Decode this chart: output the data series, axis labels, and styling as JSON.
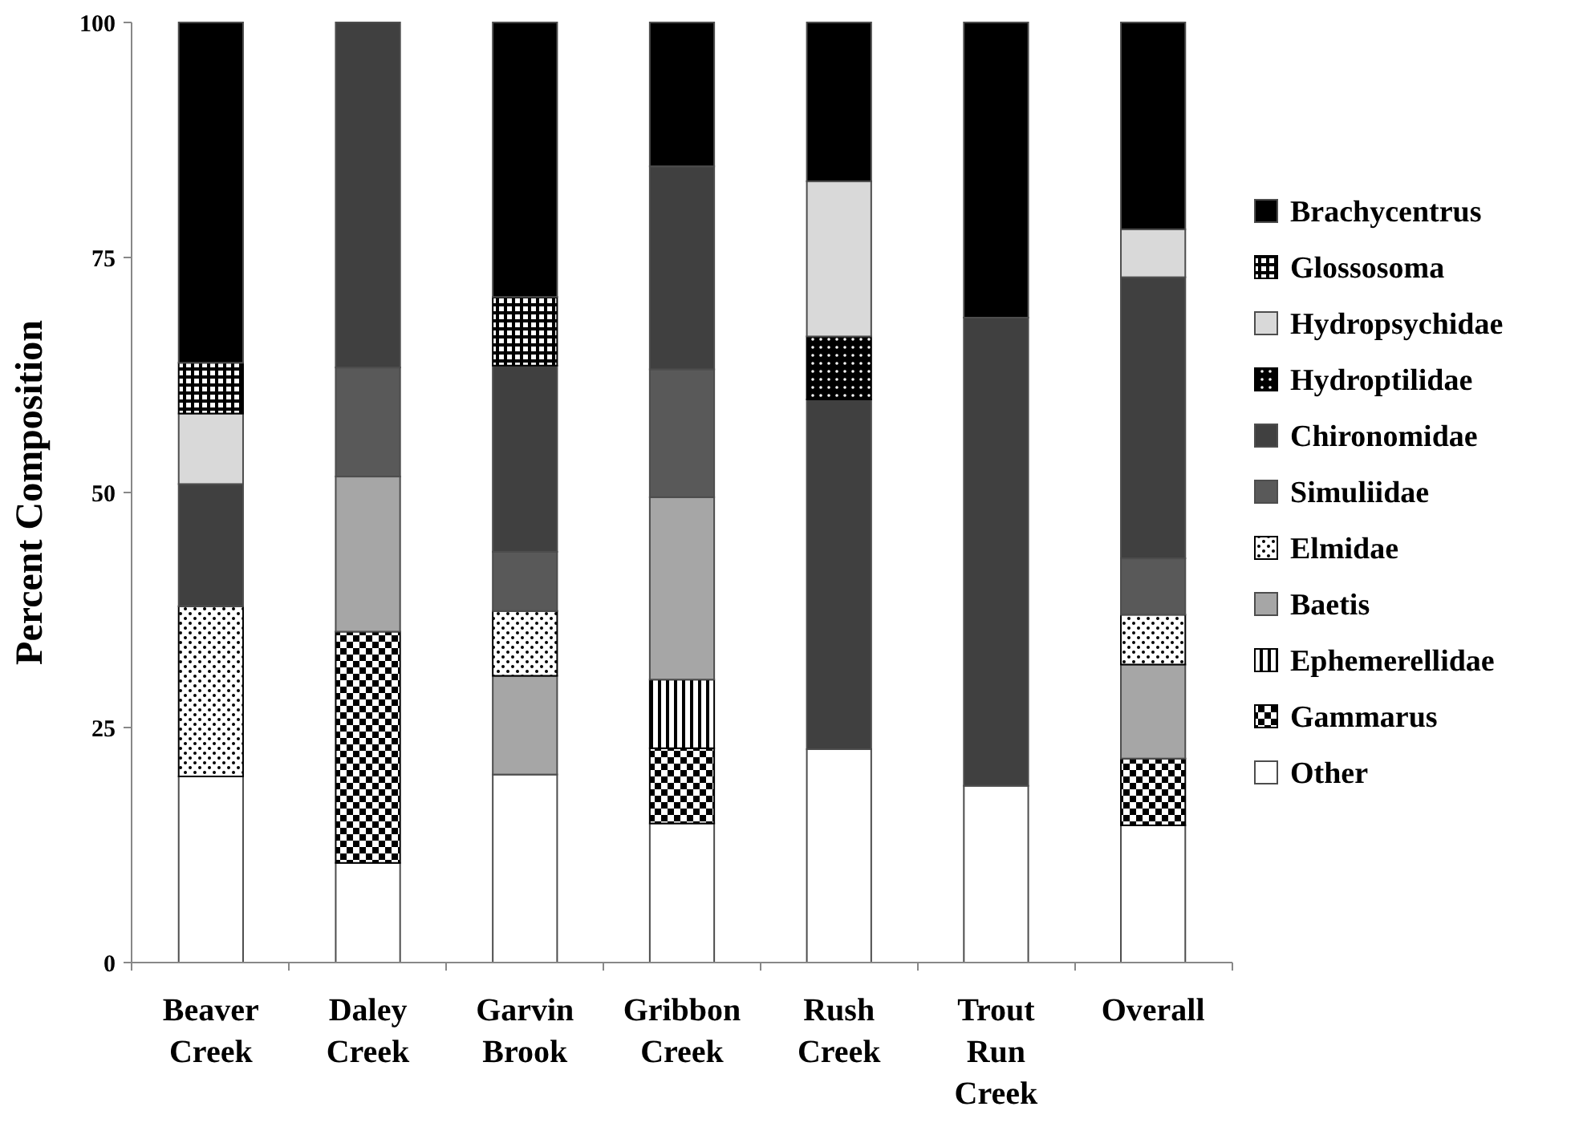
{
  "chart_data": {
    "type": "bar",
    "stacked": true,
    "ylabel": "Percent Composition",
    "categories": [
      "Beaver Creek",
      "Daley Creek",
      "Garvin Brook",
      "Gribbon Creek",
      "Rush Creek",
      "Trout Run Creek",
      "Overall"
    ],
    "ylim": [
      0,
      100
    ],
    "yticks": [
      0,
      25,
      50,
      75,
      100
    ],
    "grid": false,
    "legend": "right",
    "series": [
      {
        "name": "Other",
        "color": "#ffffff",
        "values": [
          19.8,
          10.6,
          20.0,
          14.8,
          22.7,
          18.8,
          14.6
        ]
      },
      {
        "name": "Gammarus",
        "color": "#000000",
        "values": [
          0,
          24.6,
          0,
          8.0,
          0,
          0,
          7.1
        ]
      },
      {
        "name": "Ephemerellidae",
        "color": "#000000",
        "values": [
          0,
          0,
          0,
          7.3,
          0,
          0,
          0
        ]
      },
      {
        "name": "Baetis",
        "color": "#a6a6a6",
        "values": [
          0,
          16.5,
          10.5,
          19.4,
          0,
          0,
          10.0
        ]
      },
      {
        "name": "Elmidae",
        "color": "#000000",
        "values": [
          18.1,
          0,
          6.9,
          0,
          0,
          0,
          5.3
        ]
      },
      {
        "name": "Simuliidae",
        "color": "#595959",
        "values": [
          0,
          11.6,
          6.3,
          13.6,
          0,
          0,
          6.0
        ]
      },
      {
        "name": "Chironomidae",
        "color": "#404040",
        "values": [
          13.0,
          36.7,
          19.8,
          21.6,
          37.2,
          49.8,
          29.9
        ]
      },
      {
        "name": "Hydroptilidae",
        "color": "#000000",
        "values": [
          0,
          0,
          0,
          0,
          6.7,
          0,
          0
        ]
      },
      {
        "name": "Hydropsychidae",
        "color": "#d9d9d9",
        "values": [
          7.5,
          0,
          0,
          0,
          16.5,
          0,
          5.1
        ]
      },
      {
        "name": "Glossosoma",
        "color": "#000000",
        "values": [
          5.4,
          0,
          7.3,
          0,
          0,
          0,
          0
        ]
      },
      {
        "name": "Brachycentrus",
        "color": "#000000",
        "values": [
          36.2,
          0,
          29.2,
          15.3,
          16.9,
          31.4,
          22.0
        ]
      }
    ]
  }
}
